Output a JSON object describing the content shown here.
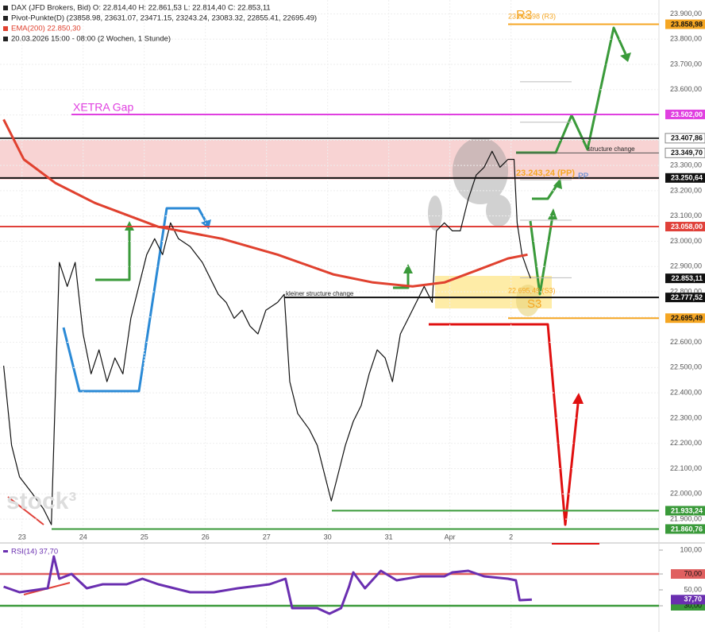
{
  "chart_data": [
    {
      "type": "line",
      "legend": [
        "DAX (JFD Brokers, Bid)  O: 22.814,40  H: 22.861,53  L: 22.814,40  C: 22.853,11",
        "Pivot-Punkte(D)  (23858.98,  23631.07,  23471.15,  23243.24,  23083.32,  22855.41,  22695.49)",
        "EMA(200)  22.850,30",
        "20.03.2026 15:00 - 08:00  (2 Wochen, 1 Stunde)"
      ],
      "legend_colors": [
        "#222222",
        "#222222",
        "#e0412f",
        "#222222"
      ],
      "xlim": [
        -0.36,
        10.42
      ],
      "xticks": [
        {
          "value": 0,
          "label": "23"
        },
        {
          "value": 1,
          "label": "24"
        },
        {
          "value": 2,
          "label": "25"
        },
        {
          "value": 3,
          "label": "26"
        },
        {
          "value": 4,
          "label": "27"
        },
        {
          "value": 5,
          "label": "30"
        },
        {
          "value": 6,
          "label": "31"
        },
        {
          "value": 7,
          "label": "Apr"
        },
        {
          "value": 8,
          "label": "2"
        }
      ],
      "ylim": [
        21815,
        23955
      ],
      "yticks": [
        {
          "value": 21900,
          "label": "21.900,00"
        },
        {
          "value": 22000,
          "label": "22.000,00"
        },
        {
          "value": 22100,
          "label": "22.100,00"
        },
        {
          "value": 22200,
          "label": "22.200,00"
        },
        {
          "value": 22300,
          "label": "22.300,00"
        },
        {
          "value": 22400,
          "label": "22.400,00"
        },
        {
          "value": 22500,
          "label": "22.500,00"
        },
        {
          "value": 22600,
          "label": "22.600,00"
        },
        {
          "value": 22700,
          "label": "22.700,00"
        },
        {
          "value": 22800,
          "label": "22.800,00"
        },
        {
          "value": 22900,
          "label": "22.900,00"
        },
        {
          "value": 23000,
          "label": "23.000,00"
        },
        {
          "value": 23100,
          "label": "23.100,00"
        },
        {
          "value": 23200,
          "label": "23.200,00"
        },
        {
          "value": 23300,
          "label": "23.300,00"
        },
        {
          "value": 23400,
          "label": "23.400,00"
        },
        {
          "value": 23500,
          "label": "23.500,00"
        },
        {
          "value": 23600,
          "label": "23.600,00"
        },
        {
          "value": 23700,
          "label": "23.700,00"
        },
        {
          "value": 23800,
          "label": "23.800,00"
        },
        {
          "value": 23900,
          "label": "23.900,00"
        }
      ],
      "grid": true,
      "series": [
        {
          "color": "#111111",
          "width": 1.2,
          "x": [
            -0.3,
            -0.17,
            -0.04,
            0.16,
            0.35,
            0.48,
            0.61,
            0.74,
            0.87,
            1.0,
            1.13,
            1.26,
            1.39,
            1.52,
            1.65,
            1.78,
            1.91,
            2.04,
            2.17,
            2.3,
            2.43,
            2.56,
            2.75,
            2.95,
            3.08,
            3.21,
            3.34,
            3.47,
            3.6,
            3.73,
            3.86,
            3.99,
            4.18,
            4.29,
            4.38,
            4.51,
            4.7,
            4.83,
            4.96,
            5.06,
            5.16,
            5.29,
            5.42,
            5.55,
            5.68,
            5.81,
            5.94,
            6.06,
            6.19,
            6.32,
            6.45,
            6.58,
            6.71,
            6.78,
            6.91,
            7.04,
            7.17,
            7.3,
            7.43,
            7.56,
            7.69,
            7.82,
            7.95,
            8.05,
            8.1,
            8.18,
            8.27,
            8.32
          ],
          "values": [
            22507,
            22192,
            22067,
            22004,
            21941,
            21878,
            22916,
            22821,
            22916,
            22633,
            22475,
            22570,
            22444,
            22538,
            22475,
            22695,
            22821,
            22947,
            23010,
            22947,
            23073,
            23010,
            22979,
            22916,
            22853,
            22790,
            22758,
            22695,
            22727,
            22664,
            22633,
            22727,
            22758,
            22790,
            22444,
            22318,
            22255,
            22192,
            22067,
            21972,
            22067,
            22192,
            22287,
            22350,
            22475,
            22570,
            22538,
            22444,
            22633,
            22695,
            22758,
            22821,
            22758,
            23041,
            23073,
            23041,
            23041,
            23167,
            23262,
            23293,
            23356,
            23293,
            23324,
            23324,
            23073,
            22947,
            22884,
            22853.11
          ]
        },
        {
          "color": "#e0412f",
          "width": 3,
          "x": [
            -0.3,
            0.03,
            0.55,
            1.19,
            2.23,
            3.27,
            4.18,
            5.09,
            5.74,
            6.39,
            6.91,
            7.43,
            7.95,
            8.27
          ],
          "values": [
            23482,
            23324,
            23230,
            23152,
            23057,
            23010,
            22947,
            22869,
            22837,
            22821,
            22837,
            22884,
            22932,
            22947
          ]
        }
      ],
      "pivots": [
        23858.98,
        23631.07,
        23471.15,
        23243.24,
        23083.32,
        22855.41,
        22695.49
      ],
      "levels": [
        {
          "value": 23858.98,
          "label": "23.858,98",
          "color": "#f5a623"
        },
        {
          "value": 23502.0,
          "label": "23.502,00",
          "color": "#e040e0"
        },
        {
          "value": 23407.86,
          "label": "23.407,86",
          "color": "#333333"
        },
        {
          "value": 23349.7,
          "label": "23.349,70",
          "color": "#555555"
        },
        {
          "value": 23250.64,
          "label": "23.250,64",
          "color": "#111111"
        },
        {
          "value": 23058.0,
          "label": "23.058,00",
          "color": "#e0413a"
        },
        {
          "value": 22853.11,
          "label": "22.853,11",
          "color": "#111111"
        },
        {
          "value": 22777.52,
          "label": "22.777,52",
          "color": "#111111"
        },
        {
          "value": 22695.49,
          "label": "22.695,49",
          "color": "#f5a623"
        },
        {
          "value": 21933.24,
          "label": "21.933,24",
          "color": "#3a9a3a"
        },
        {
          "value": 21860.76,
          "label": "21.860,76",
          "color": "#3a9a3a"
        }
      ],
      "annotations": [
        {
          "text": "XETRA Gap",
          "color": "#e040e0"
        },
        {
          "text": "23.858,98 (R3)",
          "color": "#f5a623"
        },
        {
          "text": "R3",
          "color": "#f5a623"
        },
        {
          "text": "23.243,24 (PP)",
          "color": "#f5a623"
        },
        {
          "text": "PP",
          "color": "#4a7fd4"
        },
        {
          "text": "22.695,49 (S3)",
          "color": "#f5a623"
        },
        {
          "text": "S3",
          "color": "#f5a623"
        },
        {
          "text": "structure change",
          "color": "#222222"
        },
        {
          "text": "kleiner structure change",
          "color": "#222222"
        },
        {
          "text": "stock³",
          "color": "#dddddd"
        }
      ]
    },
    {
      "type": "line",
      "legend": "RSI(14)  37,70",
      "legend_color": "#6a2fb0",
      "ylim": [
        0,
        100
      ],
      "yticks": [
        {
          "value": 100,
          "label": "100,00"
        },
        {
          "value": 70,
          "label": "70,00"
        },
        {
          "value": 50,
          "label": "50,00"
        },
        {
          "value": 30,
          "label": "30,00"
        }
      ],
      "bands": [
        {
          "value": 70,
          "color": "#e06060"
        },
        {
          "value": 30,
          "color": "#3a9a3a"
        }
      ],
      "current": {
        "value": 37.7,
        "label": "37,70",
        "color": "#6a2fb0"
      },
      "series": [
        {
          "color": "#6a2fb0",
          "width": 3,
          "x": [
            -0.3,
            -0.04,
            0.42,
            0.52,
            0.61,
            0.81,
            1.06,
            1.32,
            1.71,
            1.97,
            2.23,
            2.75,
            3.14,
            3.53,
            4.05,
            4.31,
            4.42,
            4.83,
            5.03,
            5.22,
            5.35,
            5.42,
            5.61,
            5.87,
            6.13,
            6.52,
            6.91,
            7.04,
            7.3,
            7.56,
            7.95,
            8.08,
            8.14,
            8.34
          ],
          "values": [
            54,
            47,
            52,
            92,
            64,
            70,
            52,
            57,
            57,
            64,
            57,
            47,
            47,
            52,
            57,
            64,
            27,
            27,
            20,
            27,
            54,
            72,
            52,
            74,
            62,
            67,
            67,
            72,
            74,
            67,
            64,
            62,
            37,
            37.7
          ]
        }
      ]
    }
  ]
}
